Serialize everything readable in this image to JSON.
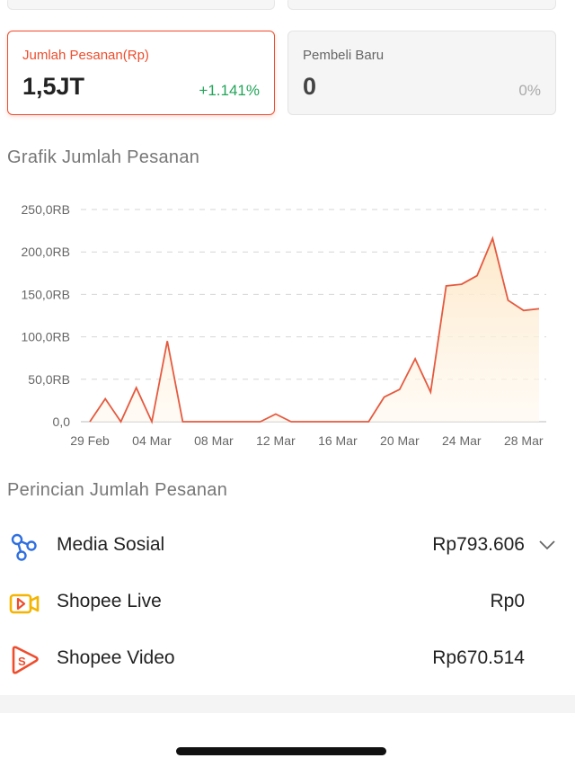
{
  "colors": {
    "accent": "#ee4d2d",
    "positive": "#23a55a",
    "muted": "#9a9a9a"
  },
  "cards": {
    "orders": {
      "label": "Jumlah Pesanan(Rp)",
      "value": "1,5JT",
      "change": "+1.141%"
    },
    "new_buyers": {
      "label": "Pembeli Baru",
      "value": "0",
      "change": "0%"
    }
  },
  "chart_section": {
    "title": "Grafik Jumlah Pesanan"
  },
  "chart_data": {
    "type": "area",
    "title": "",
    "xlabel": "",
    "ylabel": "",
    "ylim": [
      0,
      250000
    ],
    "ytick_labels": [
      "0,0",
      "50,0RB",
      "100,0RB",
      "150,0RB",
      "200,0RB",
      "250,0RB"
    ],
    "ytick_values": [
      0,
      50000,
      100000,
      150000,
      200000,
      250000
    ],
    "xtick_labels": [
      "29 Feb",
      "04 Mar",
      "08 Mar",
      "12 Mar",
      "16 Mar",
      "20 Mar",
      "24 Mar",
      "28 Mar"
    ],
    "xtick_index": [
      0,
      4,
      8,
      12,
      16,
      20,
      24,
      28
    ],
    "grid": true,
    "x": [
      "29 Feb",
      "01 Mar",
      "02 Mar",
      "03 Mar",
      "04 Mar",
      "05 Mar",
      "06 Mar",
      "07 Mar",
      "08 Mar",
      "09 Mar",
      "10 Mar",
      "11 Mar",
      "12 Mar",
      "13 Mar",
      "14 Mar",
      "15 Mar",
      "16 Mar",
      "17 Mar",
      "18 Mar",
      "19 Mar",
      "20 Mar",
      "21 Mar",
      "22 Mar",
      "23 Mar",
      "24 Mar",
      "25 Mar",
      "26 Mar",
      "27 Mar",
      "28 Mar",
      "29 Mar"
    ],
    "series": [
      {
        "values": [
          0,
          27000,
          0,
          40000,
          0,
          95000,
          0,
          0,
          0,
          0,
          0,
          0,
          9000,
          0,
          0,
          0,
          0,
          0,
          0,
          29000,
          38000,
          74000,
          35000,
          160000,
          162000,
          172000,
          216000,
          143000,
          131000,
          133000
        ]
      }
    ]
  },
  "breakdown": {
    "title": "Perincian Jumlah Pesanan",
    "items": [
      {
        "label": "Media Sosial",
        "value": "Rp793.606",
        "icon": "social-media-icon"
      },
      {
        "label": "Shopee Live",
        "value": "Rp0",
        "icon": "shopee-live-icon"
      },
      {
        "label": "Shopee Video",
        "value": "Rp670.514",
        "icon": "shopee-video-icon"
      }
    ]
  }
}
